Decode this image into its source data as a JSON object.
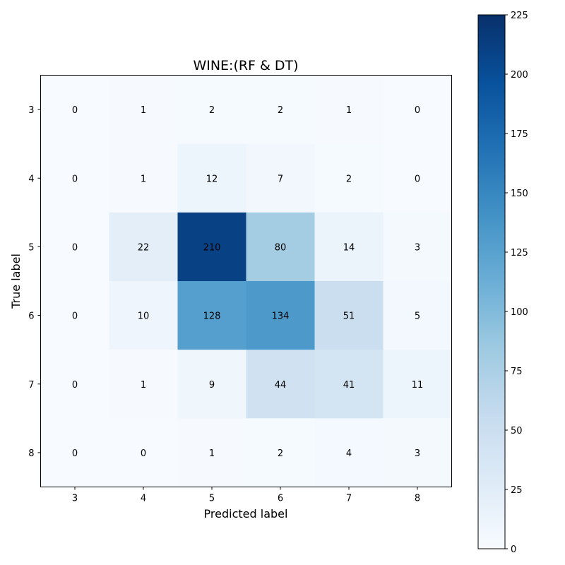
{
  "chart_data": {
    "type": "heatmap",
    "title": "WINE:(RF & DT)",
    "xlabel": "Predicted label",
    "ylabel": "True label",
    "x_categories": [
      "3",
      "4",
      "5",
      "6",
      "7",
      "8"
    ],
    "y_categories": [
      "3",
      "4",
      "5",
      "6",
      "7",
      "8"
    ],
    "values": [
      [
        0,
        1,
        2,
        2,
        1,
        0
      ],
      [
        0,
        1,
        12,
        7,
        2,
        0
      ],
      [
        0,
        22,
        210,
        80,
        14,
        3
      ],
      [
        0,
        10,
        128,
        134,
        51,
        5
      ],
      [
        0,
        1,
        9,
        44,
        41,
        11
      ],
      [
        0,
        0,
        1,
        2,
        4,
        3
      ]
    ],
    "colormap": "Blues",
    "colorbar": {
      "min": 0,
      "max": 225,
      "ticks": [
        0,
        25,
        50,
        75,
        100,
        125,
        150,
        175,
        200,
        225
      ]
    },
    "grid": false,
    "legend": "colorbar-right"
  }
}
